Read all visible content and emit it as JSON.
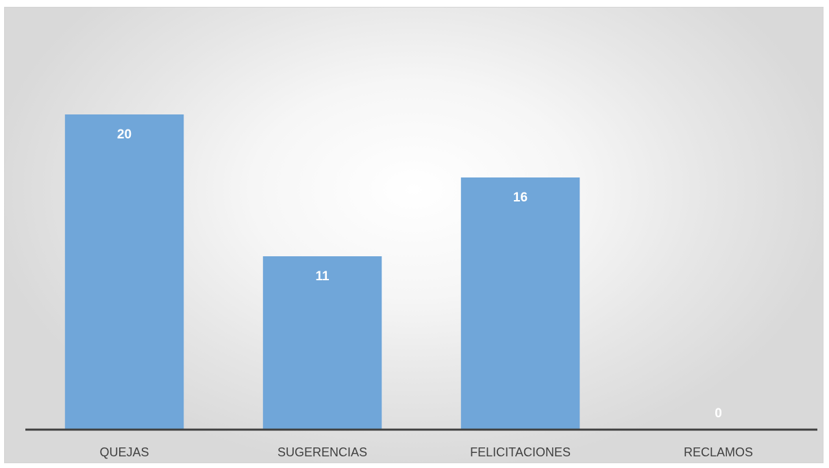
{
  "chart_data": {
    "type": "bar",
    "categories": [
      "QUEJAS",
      "SUGERENCIAS",
      "FELICITACIONES",
      "RECLAMOS"
    ],
    "values": [
      20,
      11,
      16,
      0
    ],
    "data_labels": [
      "20",
      "11",
      "16",
      "0"
    ],
    "ylim": [
      0,
      23
    ],
    "grid": false,
    "legend": "none",
    "bar_color": "#70a6d9",
    "axis_color": "#404040"
  }
}
